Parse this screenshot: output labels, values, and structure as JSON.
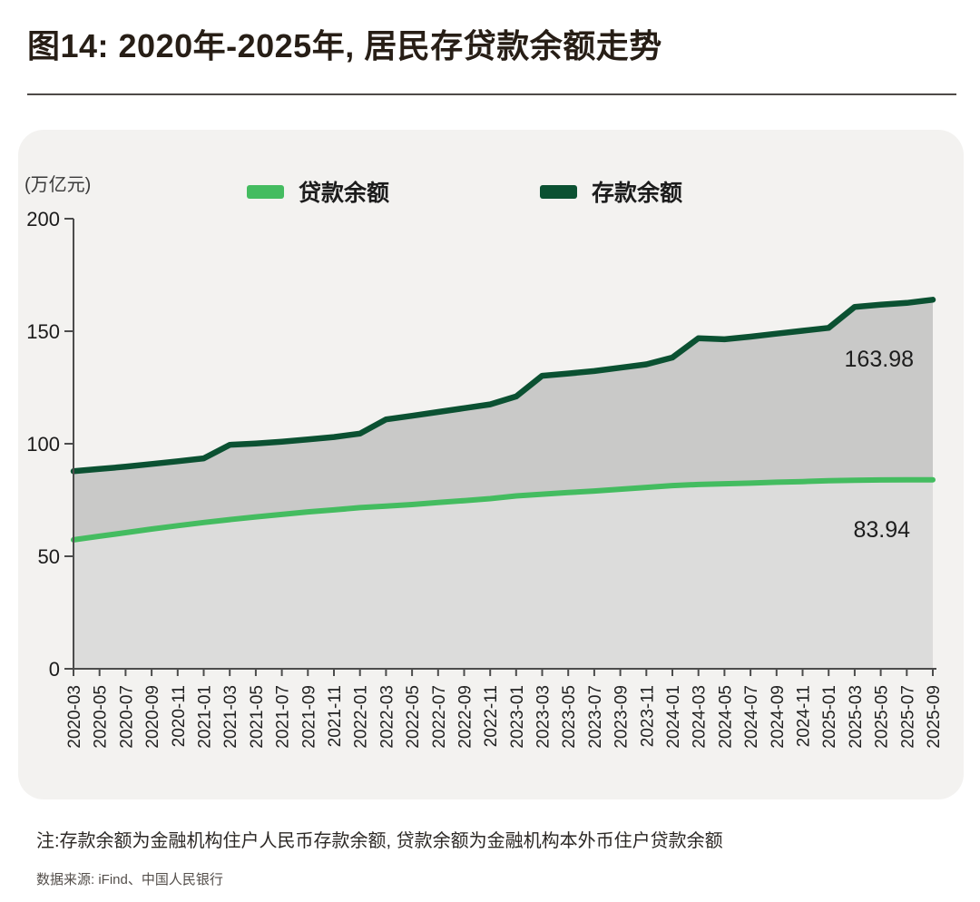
{
  "title": "图14: 2020年-2025年, 居民存贷款余额走势",
  "unit_label": "(万亿元)",
  "legend": [
    {
      "label": "贷款余额",
      "color": "#44bc60"
    },
    {
      "label": "存款余额",
      "color": "#0b5132"
    }
  ],
  "note": "注:存款余额为金融机构住户人民币存款余额, 贷款余额为金融机构本外币住户贷款余额",
  "source": "数据来源: iFind、中国人民银行",
  "chart_data": {
    "type": "area",
    "title": "图14: 2020年-2025年, 居民存贷款余额走势",
    "ylabel": "(万亿元)",
    "ylim": [
      0,
      200
    ],
    "yticks": [
      0,
      50,
      100,
      150,
      200
    ],
    "grid": false,
    "legend_position": "top",
    "x": [
      "2020-03",
      "2020-05",
      "2020-07",
      "2020-09",
      "2020-11",
      "2021-01",
      "2021-03",
      "2021-05",
      "2021-07",
      "2021-09",
      "2021-11",
      "2022-01",
      "2022-03",
      "2022-05",
      "2022-07",
      "2022-09",
      "2022-11",
      "2023-01",
      "2023-03",
      "2023-05",
      "2023-07",
      "2023-09",
      "2023-11",
      "2024-01",
      "2024-03",
      "2024-05",
      "2024-07",
      "2024-09",
      "2024-11",
      "2025-01",
      "2025-03",
      "2025-05",
      "2025-07",
      "2025-09"
    ],
    "series": [
      {
        "name": "存款余额",
        "color": "#0b5132",
        "values": [
          87.8,
          88.8,
          89.8,
          91.0,
          92.2,
          93.5,
          99.5,
          100.1,
          100.9,
          101.9,
          103.0,
          104.5,
          110.8,
          112.4,
          114.1,
          115.8,
          117.5,
          121.0,
          130.2,
          131.2,
          132.3,
          133.8,
          135.3,
          138.3,
          146.9,
          146.4,
          147.6,
          148.9,
          150.2,
          151.5,
          160.8,
          161.8,
          162.6,
          163.98
        ]
      },
      {
        "name": "贷款余额",
        "color": "#44bc60",
        "values": [
          57.3,
          58.9,
          60.5,
          62.1,
          63.6,
          65.0,
          66.3,
          67.5,
          68.6,
          69.7,
          70.6,
          71.6,
          72.3,
          73.0,
          73.9,
          74.7,
          75.6,
          76.8,
          77.6,
          78.3,
          79.0,
          79.8,
          80.6,
          81.4,
          81.9,
          82.2,
          82.5,
          82.9,
          83.2,
          83.6,
          83.8,
          83.9,
          84.0,
          83.94
        ]
      }
    ],
    "end_labels": [
      {
        "series": "存款余额",
        "text": "163.98"
      },
      {
        "series": "贷款余额",
        "text": "83.94"
      }
    ],
    "fill_between_color": "#c9c9c8",
    "fill_under_color": "#dcdcdb",
    "axis_color": "#4c4c4c"
  }
}
